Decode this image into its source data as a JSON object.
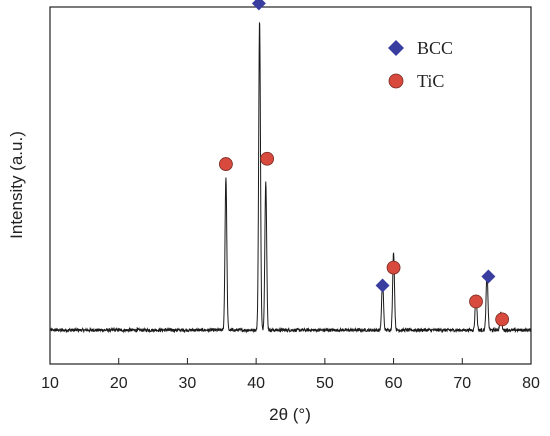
{
  "chart_data": {
    "type": "line",
    "xlabel": "2θ (°)",
    "ylabel": "Intensity (a.u.)",
    "xlim": [
      10,
      80
    ],
    "ylim": [
      0,
      100
    ],
    "x_ticks": [
      10,
      20,
      30,
      40,
      50,
      60,
      70,
      80
    ],
    "grid": false,
    "baseline": 9.5,
    "peaks": [
      {
        "x": 35.6,
        "height": 43
      },
      {
        "x": 40.5,
        "height": 87
      },
      {
        "x": 41.4,
        "height": 42
      },
      {
        "x": 58.4,
        "height": 14
      },
      {
        "x": 60.0,
        "height": 22
      },
      {
        "x": 72.0,
        "height": 10
      },
      {
        "x": 73.6,
        "height": 16
      },
      {
        "x": 75.6,
        "height": 5
      }
    ],
    "markers": [
      {
        "series": "BCC",
        "x": 40.4,
        "y": 101
      },
      {
        "series": "TiC",
        "x": 35.6,
        "y": 56
      },
      {
        "series": "TiC",
        "x": 41.6,
        "y": 57.5
      },
      {
        "series": "BCC",
        "x": 58.4,
        "y": 22
      },
      {
        "series": "TiC",
        "x": 60.0,
        "y": 27
      },
      {
        "series": "TiC",
        "x": 72.0,
        "y": 17.5
      },
      {
        "series": "BCC",
        "x": 73.8,
        "y": 24.5
      },
      {
        "series": "TiC",
        "x": 75.8,
        "y": 12.5
      }
    ],
    "legend": {
      "placement": "top-right",
      "entries": [
        {
          "name": "BCC",
          "marker": "diamond",
          "color": "#3a3da0"
        },
        {
          "name": "TiC",
          "marker": "circle",
          "color": "#d94a3e"
        }
      ]
    },
    "line_color": "#1a1a1a"
  }
}
